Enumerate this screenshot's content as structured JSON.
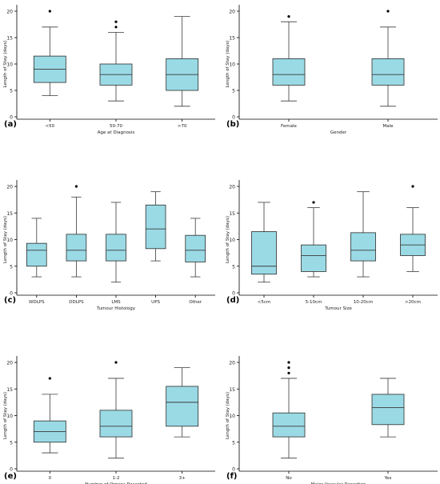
{
  "figure": {
    "box_fill": "#9ADAE5",
    "box_stroke": "#2b2b2b",
    "whisker_color": "#3a3a3a",
    "median_color": "#3a3a3a",
    "outlier_color": "#000000",
    "axis_color": "#000000",
    "text_color": "#222222"
  },
  "chart_data": [
    {
      "panel_label": "(a)",
      "type": "box",
      "xlabel": "Age at Diagnosis",
      "ylabel": "Length of Stay (days)",
      "ylim": [
        0,
        21
      ],
      "yticks": [
        0,
        5,
        10,
        15,
        20
      ],
      "grid": false,
      "categories": [
        "<50",
        "50-70",
        ">70"
      ],
      "boxes": [
        {
          "min": 4,
          "q1": 6.5,
          "median": 9,
          "q3": 11.5,
          "max": 17,
          "outliers": [
            20
          ]
        },
        {
          "min": 3,
          "q1": 6,
          "median": 8,
          "q3": 10,
          "max": 16,
          "outliers": [
            17,
            18
          ]
        },
        {
          "min": 2,
          "q1": 5,
          "median": 8,
          "q3": 11,
          "max": 19,
          "outliers": []
        }
      ]
    },
    {
      "panel_label": "(b)",
      "type": "box",
      "xlabel": "Gender",
      "ylabel": "Length of Stay (days)",
      "ylim": [
        0,
        21
      ],
      "yticks": [
        0,
        5,
        10,
        15,
        20
      ],
      "grid": false,
      "categories": [
        "Female",
        "Male"
      ],
      "boxes": [
        {
          "min": 3,
          "q1": 6,
          "median": 8,
          "q3": 11,
          "max": 18,
          "outliers": [
            19
          ]
        },
        {
          "min": 2,
          "q1": 6,
          "median": 8,
          "q3": 11,
          "max": 17,
          "outliers": [
            20
          ]
        }
      ]
    },
    {
      "panel_label": "(c)",
      "type": "box",
      "xlabel": "Tumour Histology",
      "ylabel": "Length of Stay (days)",
      "ylim": [
        0,
        21
      ],
      "yticks": [
        0,
        5,
        10,
        15,
        20
      ],
      "grid": false,
      "categories": [
        "WDLPS",
        "DDLPS",
        "LMS",
        "UPS",
        "Other"
      ],
      "boxes": [
        {
          "min": 3,
          "q1": 5,
          "median": 8,
          "q3": 9.3,
          "max": 14,
          "outliers": []
        },
        {
          "min": 3,
          "q1": 6,
          "median": 8,
          "q3": 11,
          "max": 18,
          "outliers": [
            20
          ]
        },
        {
          "min": 2,
          "q1": 6,
          "median": 8,
          "q3": 11,
          "max": 17,
          "outliers": []
        },
        {
          "min": 6,
          "q1": 8.3,
          "median": 12,
          "q3": 16.5,
          "max": 19,
          "outliers": []
        },
        {
          "min": 3,
          "q1": 5.8,
          "median": 8,
          "q3": 10.8,
          "max": 14,
          "outliers": []
        }
      ]
    },
    {
      "panel_label": "(d)",
      "type": "box",
      "xlabel": "Tumour Size",
      "ylabel": "Length of Stay (days)",
      "ylim": [
        0,
        21
      ],
      "yticks": [
        0,
        5,
        10,
        15,
        20
      ],
      "grid": false,
      "categories": [
        "<5cm",
        "5-10cm",
        "10-20cm",
        ">20cm"
      ],
      "boxes": [
        {
          "min": 2,
          "q1": 3.5,
          "median": 5,
          "q3": 11.5,
          "max": 17,
          "outliers": []
        },
        {
          "min": 3,
          "q1": 4,
          "median": 7,
          "q3": 9,
          "max": 16,
          "outliers": [
            17
          ]
        },
        {
          "min": 3,
          "q1": 6,
          "median": 8,
          "q3": 11.3,
          "max": 19,
          "outliers": []
        },
        {
          "min": 4,
          "q1": 7,
          "median": 9,
          "q3": 11,
          "max": 16,
          "outliers": [
            20
          ]
        }
      ]
    },
    {
      "panel_label": "(e)",
      "type": "box",
      "xlabel": "Number of Organs Resected",
      "ylabel": "Length of Stay (days)",
      "ylim": [
        0,
        21
      ],
      "yticks": [
        0,
        5,
        10,
        15,
        20
      ],
      "grid": false,
      "categories": [
        "0",
        "1-2",
        "3+"
      ],
      "boxes": [
        {
          "min": 3,
          "q1": 5,
          "median": 7,
          "q3": 9,
          "max": 14,
          "outliers": [
            17
          ]
        },
        {
          "min": 2,
          "q1": 6,
          "median": 8,
          "q3": 11,
          "max": 17,
          "outliers": [
            20
          ]
        },
        {
          "min": 6,
          "q1": 8,
          "median": 12.5,
          "q3": 15.5,
          "max": 19,
          "outliers": []
        }
      ]
    },
    {
      "panel_label": "(f)",
      "type": "box",
      "xlabel": "Major Vascular Resection",
      "ylabel": "Length of Stay (days)",
      "ylim": [
        0,
        21
      ],
      "yticks": [
        0,
        5,
        10,
        15,
        20
      ],
      "grid": false,
      "categories": [
        "No",
        "Yes"
      ],
      "boxes": [
        {
          "min": 2,
          "q1": 6,
          "median": 8,
          "q3": 10.5,
          "max": 17,
          "outliers": [
            18,
            19,
            20
          ]
        },
        {
          "min": 6,
          "q1": 8.3,
          "median": 11.5,
          "q3": 14,
          "max": 17,
          "outliers": []
        }
      ]
    }
  ]
}
